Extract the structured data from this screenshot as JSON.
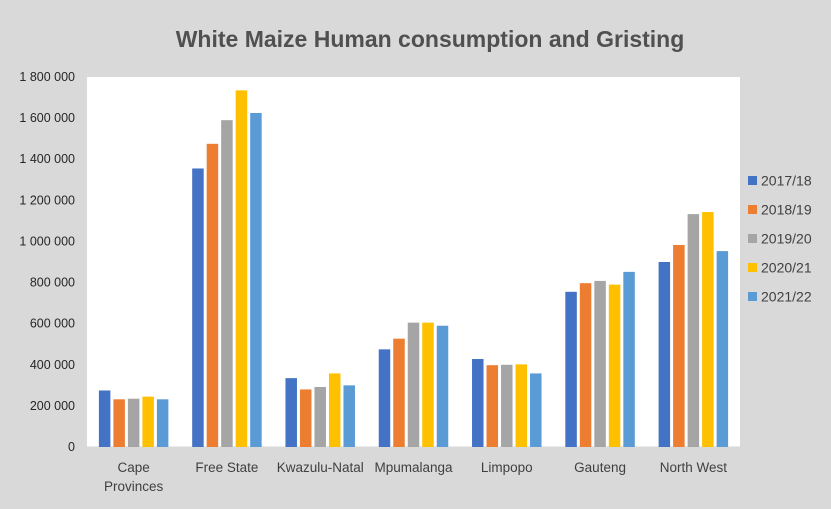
{
  "chart_data": {
    "type": "bar",
    "title": "White Maize Human consumption and Gristing",
    "categories": [
      [
        "Cape",
        "Provinces"
      ],
      [
        "Free State"
      ],
      [
        "Kwazulu-Natal"
      ],
      [
        "Mpumalanga"
      ],
      [
        "Limpopo"
      ],
      [
        "Gauteng"
      ],
      [
        "North West"
      ]
    ],
    "y_ticks": [
      "0",
      "200 000",
      "400 000",
      "600 000",
      "800 000",
      "1 000 000",
      "1 200 000",
      "1 400 000",
      "1 600 000",
      "1 800 000"
    ],
    "ylim": [
      0,
      1800000
    ],
    "legend_position": "right",
    "series": [
      {
        "name": "2017/18",
        "color": "#4472c4",
        "values": [
          275000,
          1355000,
          335000,
          475000,
          428000,
          755000,
          900000
        ]
      },
      {
        "name": "2018/19",
        "color": "#ed7d31",
        "values": [
          232000,
          1475000,
          280000,
          527000,
          398000,
          797000,
          983000
        ]
      },
      {
        "name": "2019/20",
        "color": "#a5a5a5",
        "values": [
          235000,
          1590000,
          292000,
          605000,
          400000,
          808000,
          1133000
        ]
      },
      {
        "name": "2020/21",
        "color": "#ffc000",
        "values": [
          245000,
          1735000,
          358000,
          605000,
          402000,
          790000,
          1143000
        ]
      },
      {
        "name": "2021/22",
        "color": "#5b9bd5",
        "values": [
          232000,
          1625000,
          300000,
          590000,
          358000,
          852000,
          953000
        ]
      }
    ]
  }
}
